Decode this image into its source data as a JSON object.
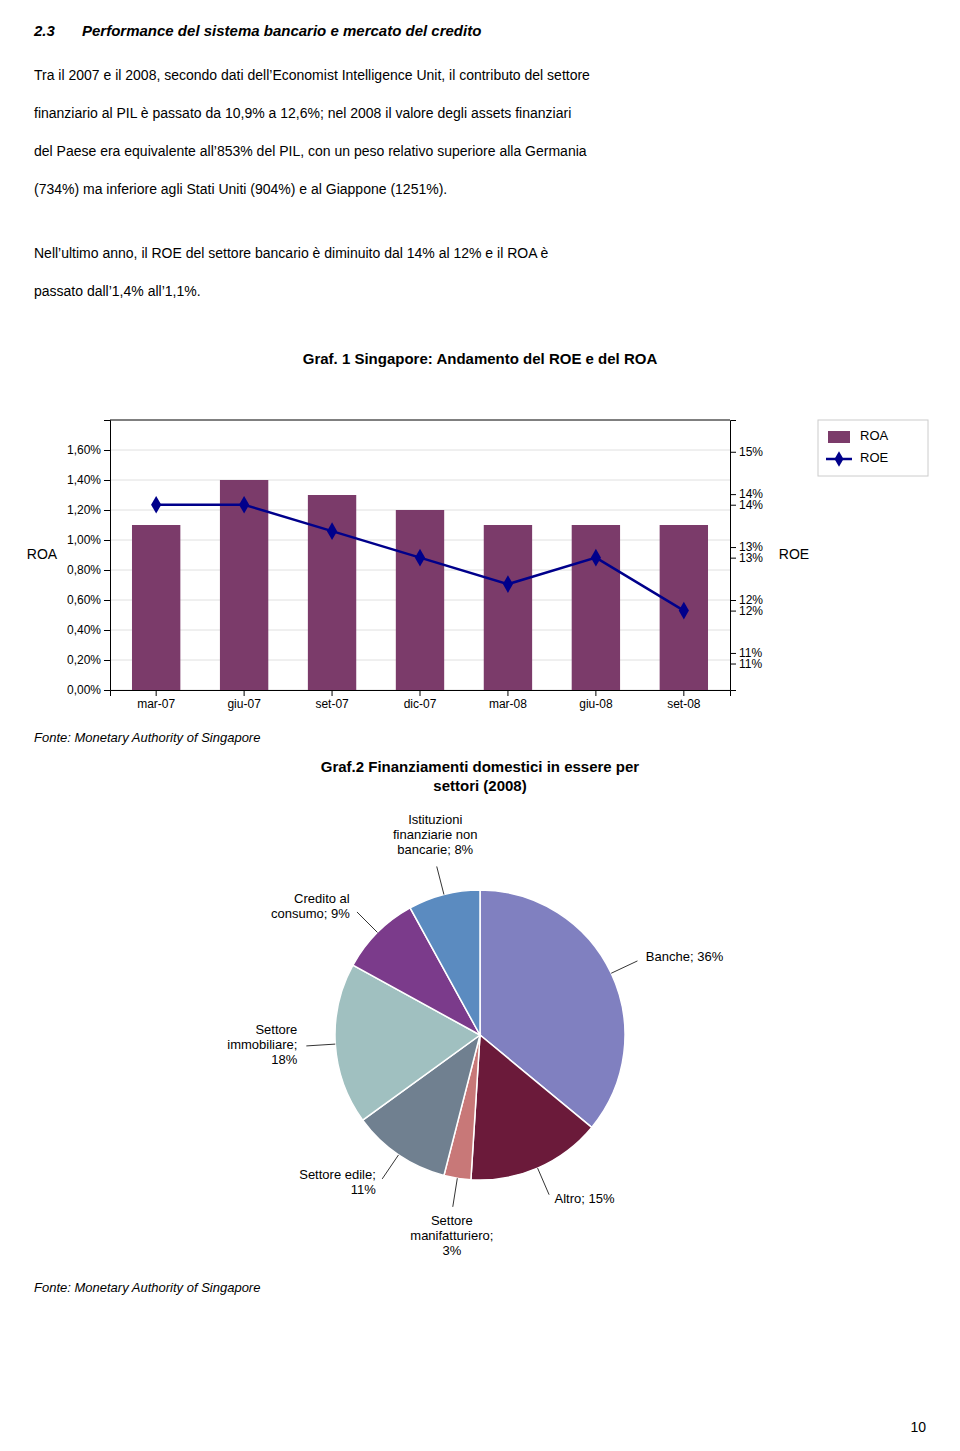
{
  "page": {
    "title_num": "2.3",
    "title": "Performance del sistema bancario e mercato del credito",
    "paragraphs": [
      [
        "Tra il 2007 e il 2008, secondo dati dell’Economist Intelligence Unit, il contributo del settore",
        "finanziario al PIL è passato da 10,9% a 12,6%; nel 2008 il valore degli assets finanziari",
        "del Paese era equivalente all’853% del PIL, con un peso relativo superiore alla Germania",
        "(734%) ma inferiore agli Stati Uniti (904%) e al Giappone (1251%)."
      ],
      [
        "Nell’ultimo anno, il ROE del settore bancario è diminuito dal 14% al 12% e il ROA è",
        "passato dall’1,4% all’1,1%."
      ]
    ],
    "page_number": "10"
  },
  "chart_data": [
    {
      "type": "bar",
      "title": "Graf. 1 Singapore: Andamento del ROE e del ROA",
      "source": "Fonte: Monetary Authority of Singapore",
      "categories": [
        "mar-07",
        "giu-07",
        "set-07",
        "dic-07",
        "mar-08",
        "giu-08",
        "set-08"
      ],
      "series": [
        {
          "name": "ROA",
          "type": "bar",
          "color": "#7B3B6A",
          "values": [
            0.011,
            0.014,
            0.013,
            0.012,
            0.011,
            0.011,
            0.011
          ]
        },
        {
          "name": "ROE",
          "type": "line",
          "axis": "y2",
          "color": "#00008B",
          "marker": "diamond",
          "values": [
            0.14,
            0.14,
            0.135,
            0.13,
            0.125,
            0.13,
            0.12
          ]
        }
      ],
      "ylabel": "ROA",
      "y2label": "ROE",
      "ylim": [
        0,
        0.018
      ],
      "yticks": [
        {
          "value": 0.0,
          "label": "0,00%"
        },
        {
          "value": 0.002,
          "label": "0,20%"
        },
        {
          "value": 0.004,
          "label": "0,40%"
        },
        {
          "value": 0.006,
          "label": "0,60%"
        },
        {
          "value": 0.008,
          "label": "0,80%"
        },
        {
          "value": 0.01,
          "label": "1,00%"
        },
        {
          "value": 0.012,
          "label": "1,20%"
        },
        {
          "value": 0.014,
          "label": "1,40%"
        },
        {
          "value": 0.016,
          "label": "1,60%"
        }
      ],
      "y2lim": [
        0.105,
        0.156
      ],
      "y2ticks": [
        {
          "value": 0.11,
          "label": "11%"
        },
        {
          "value": 0.112,
          "label": "11%"
        },
        {
          "value": 0.12,
          "label": "12%"
        },
        {
          "value": 0.122,
          "label": "12%"
        },
        {
          "value": 0.13,
          "label": "13%"
        },
        {
          "value": 0.132,
          "label": "13%"
        },
        {
          "value": 0.14,
          "label": "14%"
        },
        {
          "value": 0.142,
          "label": "14%"
        },
        {
          "value": 0.15,
          "label": "15%"
        }
      ],
      "grid": true,
      "legend": "upper right"
    },
    {
      "type": "pie",
      "title": "Graf.2 Finanziamenti domestici in essere per\nsettori (2008)",
      "source": "Fonte: Monetary Authority of Singapore",
      "values": [
        36,
        15,
        3,
        11,
        18,
        9,
        8
      ],
      "value_labels": [
        "Banche; 36%",
        "Altro; 15%",
        "Settore\nmanifatturiero;\n3%",
        "Settore edile;\n11%",
        "Settore\nimmobiliare;\n18%",
        "Credito al\nconsumo; 9%",
        "Istituzioni\nfinanziarie non\nbancarie; 8%"
      ],
      "data_labels": true,
      "colors": [
        "#8080C0",
        "#6B1A3A",
        "#C87878",
        "#708090",
        "#A0C0C0",
        "#7B3B8B",
        "#5B8BC0"
      ]
    }
  ]
}
